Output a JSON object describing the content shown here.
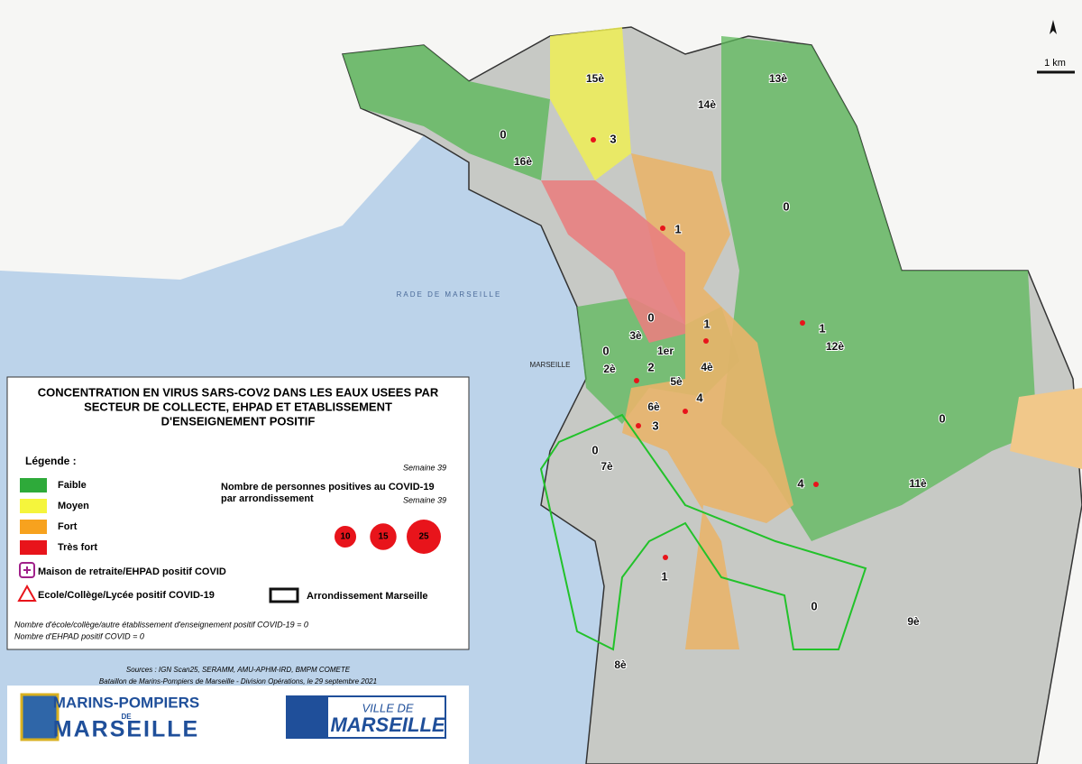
{
  "title": [
    "CONCENTRATION EN VIRUS SARS-COV2 DANS LES EAUX USEES PAR",
    "SECTEUR DE COLLECTE, EHPAD ET ETABLISSEMENT",
    "D'ENSEIGNEMENT POSITIF"
  ],
  "legend": {
    "heading": "Légende :",
    "levels": [
      {
        "label": "Faible",
        "color": "#2eaa3a"
      },
      {
        "label": "Moyen",
        "color": "#f5f53c"
      },
      {
        "label": "Fort",
        "color": "#f7a21e"
      },
      {
        "label": "Très fort",
        "color": "#e8141b"
      }
    ],
    "ehpad": "Maison de retraite/EHPAD positif COVID",
    "school": "Ecole/Collège/Lycée positif COVID-19",
    "boundary": "Arrondissement Marseille",
    "cases": {
      "week": "Semaine 39",
      "title": [
        "Nombre de personnes positives au COVID-19",
        "par arrondissement"
      ],
      "week2": "Semaine 39",
      "sizes": [
        10,
        15,
        25
      ]
    }
  },
  "notes": [
    "Nombre d'école/collège/autre établissement d'enseignement positif COVID-19 = 0",
    "Nombre d'EHPAD positif COVID = 0"
  ],
  "sources": [
    "Sources : IGN Scan25, SERAMM, AMU-APHM-IRD, BMPM COMETE",
    "Bataillon de Marins-Pompiers de Marseille - Division Opérations, le 29 septembre 2021"
  ],
  "logos": {
    "pompiers": [
      "MARINS-POMPIERS",
      "DE",
      "MARSEILLE"
    ],
    "ville": [
      "VILLE DE",
      "MARSEILLE"
    ]
  },
  "map": {
    "places": [
      "RADE DE MARSEILLE",
      "MARSEILLE"
    ],
    "scale": "1 km",
    "arrondissements": [
      "15è",
      "14è",
      "13è",
      "16è",
      "3è",
      "2è",
      "1er",
      "4è",
      "5è",
      "6è",
      "7è",
      "12è",
      "11è",
      "8è",
      "9è"
    ],
    "case_counts": [
      3,
      0,
      1,
      0,
      0,
      1,
      1,
      0,
      2,
      4,
      3,
      0,
      0,
      4,
      1,
      0
    ]
  }
}
